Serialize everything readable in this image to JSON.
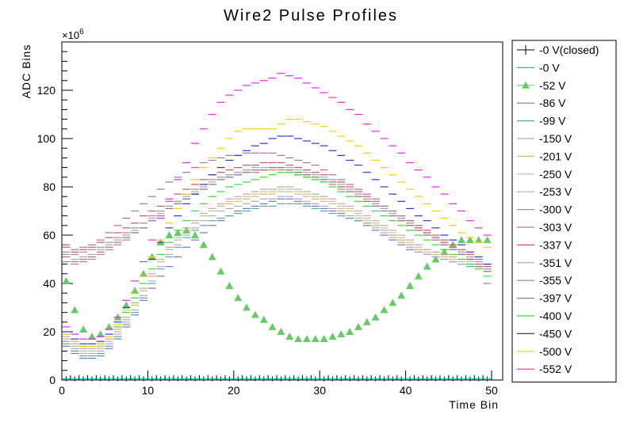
{
  "chart_data": {
    "type": "scatter",
    "title": "Wire2 Pulse Profiles",
    "xlabel": "Time Bin",
    "ylabel": "ADC Bins",
    "multiplier_base": "×10",
    "multiplier_exp": "6",
    "xlim": [
      0,
      50
    ],
    "ylim": [
      0,
      140
    ],
    "x_ticks": [
      0,
      10,
      20,
      30,
      40,
      50
    ],
    "y_ticks": [
      0,
      20,
      40,
      60,
      80,
      100,
      120
    ],
    "x": [
      0,
      1,
      2,
      3,
      4,
      5,
      6,
      7,
      8,
      9,
      10,
      11,
      12,
      13,
      14,
      15,
      16,
      17,
      18,
      19,
      20,
      21,
      22,
      23,
      24,
      25,
      26,
      27,
      28,
      29,
      30,
      31,
      32,
      33,
      34,
      35,
      36,
      37,
      38,
      39,
      40,
      41,
      42,
      43,
      44,
      45,
      46,
      47,
      48,
      49
    ],
    "grid": false,
    "legend_position": "right",
    "series": [
      {
        "name": "-0 V(closed)",
        "color": "#000000",
        "marker": "cross",
        "values": [
          0.5,
          0.5,
          0.5,
          0.5,
          0.5,
          0.5,
          0.5,
          0.5,
          0.5,
          0.5,
          0.5,
          0.5,
          0.5,
          0.5,
          0.5,
          0.5,
          0.5,
          0.5,
          0.5,
          0.5,
          0.5,
          0.5,
          0.5,
          0.5,
          0.5,
          0.5,
          0.5,
          0.5,
          0.5,
          0.5,
          0.5,
          0.5,
          0.5,
          0.5,
          0.5,
          0.5,
          0.5,
          0.5,
          0.5,
          0.5,
          0.5,
          0.5,
          0.5,
          0.5,
          0.5,
          0.5,
          0.5,
          0.5,
          0.5,
          0.5
        ]
      },
      {
        "name": "-0 V",
        "color": "#00cccc",
        "marker": "dash",
        "values": [
          0.5,
          0.5,
          0.5,
          0.5,
          0.5,
          0.5,
          0.5,
          0.5,
          0.5,
          0.5,
          0.5,
          0.5,
          0.5,
          0.5,
          0.5,
          0.5,
          0.5,
          0.5,
          0.5,
          0.5,
          0.5,
          0.5,
          0.5,
          0.5,
          0.5,
          0.5,
          0.5,
          0.5,
          0.5,
          0.5,
          0.5,
          0.5,
          0.5,
          0.5,
          0.5,
          0.5,
          0.5,
          0.5,
          0.5,
          0.5,
          0.5,
          0.5,
          0.5,
          0.5,
          0.5,
          0.5,
          0.5,
          0.5,
          0.5,
          0.5
        ]
      },
      {
        "name": "-52 V",
        "color": "#66cc66",
        "marker": "triangle",
        "values": [
          41,
          29,
          21,
          18,
          19,
          22,
          26,
          31,
          37,
          44,
          51,
          57,
          60,
          61,
          62,
          60,
          56,
          51,
          45,
          39,
          34,
          30,
          27,
          25,
          22,
          20,
          18,
          17,
          17,
          17,
          17,
          18,
          19,
          20,
          22,
          24,
          26,
          29,
          32,
          35,
          39,
          43,
          47,
          50,
          53,
          56,
          58,
          58,
          58,
          58
        ]
      },
      {
        "name": "-86 V",
        "color": "#7777bb",
        "marker": "dash",
        "values": [
          14,
          11,
          9,
          9,
          10,
          13,
          17,
          22,
          27,
          33,
          38,
          43,
          47,
          51,
          55,
          58,
          61,
          64,
          66,
          68,
          70,
          71,
          72,
          73,
          74,
          75,
          75,
          74,
          73,
          72,
          71,
          70,
          69,
          67,
          66,
          64,
          62,
          60,
          58,
          56,
          54,
          53,
          52,
          51,
          50,
          49,
          48,
          48,
          47,
          46
        ]
      },
      {
        "name": "-99 V",
        "color": "#55aa99",
        "marker": "dash",
        "values": [
          15,
          12,
          10,
          10,
          11,
          14,
          18,
          23,
          28,
          34,
          40,
          46,
          51,
          55,
          59,
          62,
          64,
          66,
          67,
          68,
          69,
          70,
          71,
          72,
          72,
          73,
          73,
          73,
          72,
          71,
          70,
          69,
          68,
          67,
          66,
          65,
          64,
          62,
          60,
          58,
          56,
          54,
          52,
          51,
          50,
          49,
          48,
          47,
          47,
          46
        ]
      },
      {
        "name": "-150 V",
        "color": "#aaaacc",
        "marker": "dash",
        "values": [
          16,
          13,
          11,
          11,
          12,
          15,
          19,
          24,
          29,
          35,
          41,
          47,
          52,
          56,
          60,
          63,
          66,
          68,
          70,
          71,
          72,
          73,
          74,
          75,
          75,
          76,
          76,
          75,
          74,
          73,
          72,
          71,
          70,
          68,
          67,
          65,
          63,
          61,
          59,
          57,
          55,
          53,
          52,
          51,
          50,
          49,
          48,
          48,
          47,
          46
        ]
      },
      {
        "name": "-201 V",
        "color": "#ddbb66",
        "marker": "dash",
        "values": [
          17,
          14,
          12,
          12,
          13,
          16,
          20,
          25,
          31,
          37,
          43,
          49,
          54,
          58,
          62,
          65,
          68,
          70,
          72,
          73,
          74,
          75,
          76,
          77,
          77,
          78,
          78,
          77,
          76,
          75,
          74,
          73,
          71,
          70,
          68,
          66,
          64,
          62,
          60,
          58,
          56,
          54,
          53,
          52,
          51,
          50,
          49,
          49,
          48,
          47
        ]
      },
      {
        "name": "-250 V",
        "color": "#ccbb99",
        "marker": "dash",
        "values": [
          17,
          14,
          12,
          12,
          13,
          16,
          20,
          25,
          31,
          37,
          43,
          49,
          54,
          58,
          62,
          65,
          68,
          70,
          72,
          74,
          75,
          76,
          77,
          78,
          78,
          79,
          79,
          78,
          77,
          76,
          75,
          74,
          72,
          71,
          69,
          67,
          65,
          63,
          61,
          59,
          57,
          55,
          54,
          53,
          52,
          51,
          50,
          50,
          49,
          48
        ]
      },
      {
        "name": "-253 V",
        "color": "#bbaaaa",
        "marker": "dash",
        "values": [
          18,
          15,
          13,
          13,
          14,
          17,
          21,
          26,
          32,
          38,
          44,
          50,
          55,
          59,
          63,
          66,
          69,
          71,
          73,
          75,
          76,
          77,
          78,
          79,
          79,
          80,
          80,
          79,
          78,
          77,
          76,
          75,
          73,
          72,
          70,
          68,
          66,
          64,
          62,
          60,
          58,
          56,
          54,
          53,
          52,
          51,
          50,
          50,
          49,
          48
        ]
      },
      {
        "name": "-300 V",
        "color": "#bb8877",
        "marker": "dash",
        "values": [
          53,
          52,
          53,
          54,
          55,
          57,
          59,
          61,
          63,
          65,
          68,
          70,
          72,
          74,
          77,
          79,
          81,
          83,
          84,
          85,
          86,
          87,
          87,
          87,
          88,
          88,
          87,
          86,
          85,
          84,
          83,
          82,
          80,
          79,
          77,
          75,
          73,
          71,
          69,
          67,
          65,
          63,
          61,
          59,
          57,
          55,
          53,
          51,
          49,
          46
        ]
      },
      {
        "name": "-303 V",
        "color": "#cc7777",
        "marker": "dash",
        "values": [
          49,
          48,
          49,
          50,
          52,
          54,
          56,
          58,
          61,
          63,
          66,
          68,
          71,
          73,
          75,
          77,
          79,
          81,
          83,
          84,
          85,
          86,
          86,
          87,
          87,
          87,
          86,
          85,
          84,
          83,
          82,
          81,
          79,
          78,
          76,
          74,
          72,
          70,
          68,
          66,
          64,
          62,
          60,
          58,
          56,
          54,
          52,
          50,
          48,
          45
        ]
      },
      {
        "name": "-337 V",
        "color": "#cc5566",
        "marker": "dash",
        "values": [
          55,
          53,
          54,
          55,
          57,
          59,
          61,
          63,
          65,
          68,
          70,
          72,
          74,
          77,
          79,
          81,
          83,
          85,
          86,
          87,
          88,
          89,
          89,
          90,
          90,
          90,
          89,
          88,
          87,
          86,
          85,
          83,
          82,
          80,
          78,
          76,
          74,
          72,
          70,
          68,
          66,
          64,
          62,
          60,
          58,
          56,
          54,
          52,
          50,
          47
        ]
      },
      {
        "name": "-351 V",
        "color": "#99aabb",
        "marker": "dash",
        "values": [
          52,
          50,
          51,
          52,
          54,
          56,
          58,
          60,
          62,
          65,
          67,
          69,
          72,
          74,
          76,
          78,
          80,
          82,
          84,
          85,
          86,
          87,
          88,
          88,
          88,
          88,
          88,
          87,
          86,
          85,
          84,
          83,
          81,
          79,
          77,
          75,
          73,
          71,
          69,
          67,
          65,
          63,
          61,
          59,
          57,
          55,
          53,
          51,
          49,
          46
        ]
      },
      {
        "name": "-355 V",
        "color": "#aa7788",
        "marker": "dash",
        "values": [
          56,
          54,
          55,
          56,
          58,
          61,
          64,
          67,
          70,
          73,
          76,
          79,
          82,
          84,
          86,
          88,
          90,
          91,
          92,
          93,
          93,
          94,
          94,
          94,
          94,
          93,
          92,
          91,
          90,
          89,
          87,
          85,
          83,
          81,
          79,
          77,
          75,
          72,
          70,
          68,
          66,
          63,
          61,
          59,
          57,
          55,
          52,
          50,
          47,
          40
        ]
      },
      {
        "name": "-397 V",
        "color": "#997788",
        "marker": "dash",
        "values": [
          51,
          49,
          50,
          51,
          53,
          55,
          57,
          59,
          61,
          63,
          66,
          68,
          71,
          73,
          75,
          77,
          79,
          81,
          83,
          84,
          85,
          86,
          87,
          87,
          88,
          88,
          87,
          86,
          85,
          84,
          83,
          82,
          80,
          78,
          76,
          74,
          72,
          70,
          68,
          66,
          64,
          62,
          60,
          58,
          56,
          54,
          52,
          50,
          48,
          45
        ]
      },
      {
        "name": "-400 V",
        "color": "#33dd33",
        "marker": "dash",
        "values": [
          19,
          16,
          14,
          14,
          15,
          18,
          22,
          28,
          34,
          40,
          46,
          52,
          57,
          62,
          66,
          70,
          73,
          76,
          78,
          80,
          81,
          82,
          83,
          84,
          85,
          86,
          86,
          85,
          84,
          83,
          82,
          80,
          78,
          76,
          74,
          72,
          70,
          68,
          66,
          64,
          62,
          60,
          58,
          56,
          54,
          52,
          50,
          48,
          46,
          43
        ]
      },
      {
        "name": "-450 V",
        "color": "#3333cc",
        "marker": "dash",
        "values": [
          20,
          17,
          15,
          15,
          16,
          19,
          24,
          30,
          36,
          43,
          50,
          57,
          63,
          68,
          73,
          77,
          81,
          85,
          88,
          91,
          93,
          95,
          97,
          98,
          100,
          101,
          101,
          100,
          99,
          98,
          97,
          95,
          93,
          91,
          89,
          86,
          83,
          80,
          77,
          74,
          71,
          68,
          66,
          63,
          60,
          58,
          56,
          53,
          51,
          48
        ]
      },
      {
        "name": "-500 V",
        "color": "#ffcc00",
        "marker": "dash",
        "values": [
          19,
          16,
          14,
          14,
          15,
          18,
          23,
          29,
          36,
          43,
          51,
          58,
          65,
          71,
          77,
          83,
          88,
          92,
          96,
          100,
          103,
          104,
          104,
          104,
          104,
          106,
          108,
          108,
          107,
          106,
          105,
          103,
          101,
          99,
          97,
          94,
          91,
          88,
          85,
          82,
          79,
          76,
          73,
          70,
          67,
          64,
          61,
          59,
          57,
          55
        ]
      },
      {
        "name": "-552 V",
        "color": "#ee22ee",
        "marker": "dash",
        "values": [
          22,
          19,
          17,
          17,
          18,
          21,
          26,
          33,
          41,
          49,
          58,
          67,
          75,
          83,
          90,
          98,
          104,
          110,
          115,
          118,
          120,
          122,
          123,
          124,
          125,
          127,
          126,
          125,
          123,
          121,
          119,
          117,
          115,
          112,
          110,
          106,
          103,
          100,
          97,
          94,
          90,
          87,
          84,
          80,
          77,
          73,
          70,
          66,
          63,
          60
        ]
      }
    ]
  }
}
